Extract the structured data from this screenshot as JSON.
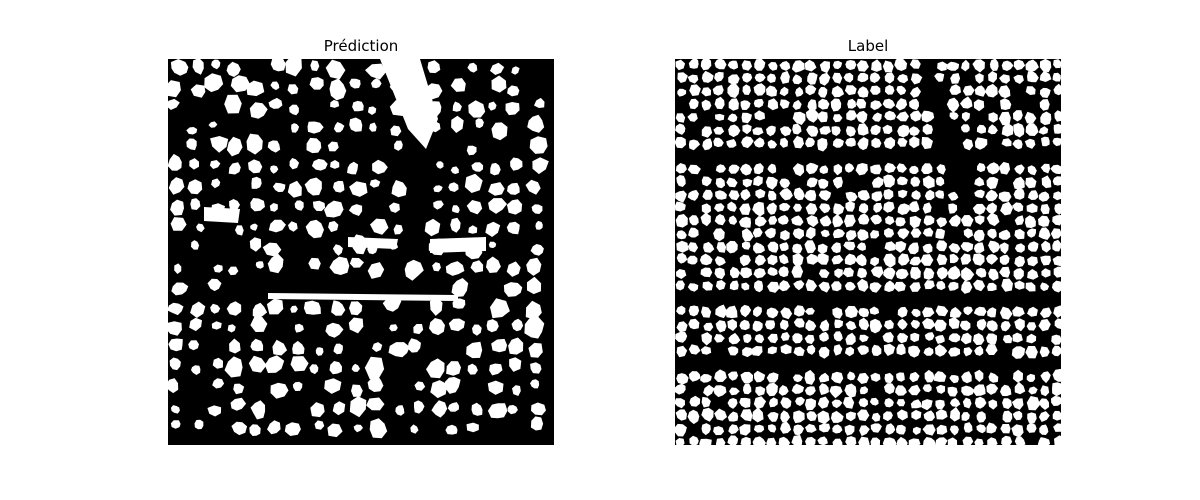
{
  "panels": [
    {
      "title": "Prédiction"
    },
    {
      "title": "Label"
    }
  ],
  "colors": {
    "background": "#ffffff",
    "mask_background": "#000000",
    "mask_foreground": "#ffffff"
  }
}
